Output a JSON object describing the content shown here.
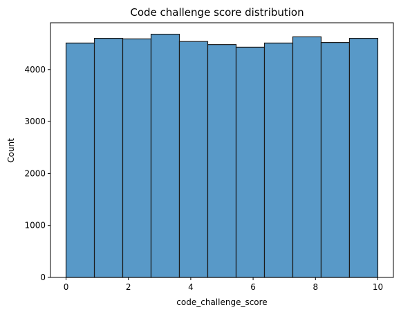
{
  "chart_data": {
    "type": "bar",
    "title": "Code challenge score distribution",
    "xlabel": "code_challenge_score",
    "ylabel": "Count",
    "bin_edges": [
      0,
      0.909,
      1.818,
      2.727,
      3.636,
      4.545,
      5.455,
      6.364,
      7.273,
      8.182,
      9.091,
      10
    ],
    "values": [
      4510,
      4600,
      4590,
      4680,
      4540,
      4480,
      4430,
      4510,
      4630,
      4520,
      4600
    ],
    "xlim": [
      -0.5,
      10.5
    ],
    "ylim": [
      0,
      4900
    ],
    "xticks": [
      0,
      2,
      4,
      6,
      8,
      10
    ],
    "yticks": [
      0,
      1000,
      2000,
      3000,
      4000
    ],
    "bar_color": "#5899c8",
    "edge_color": "#1a1a1a",
    "grid": false,
    "legend": "none"
  }
}
